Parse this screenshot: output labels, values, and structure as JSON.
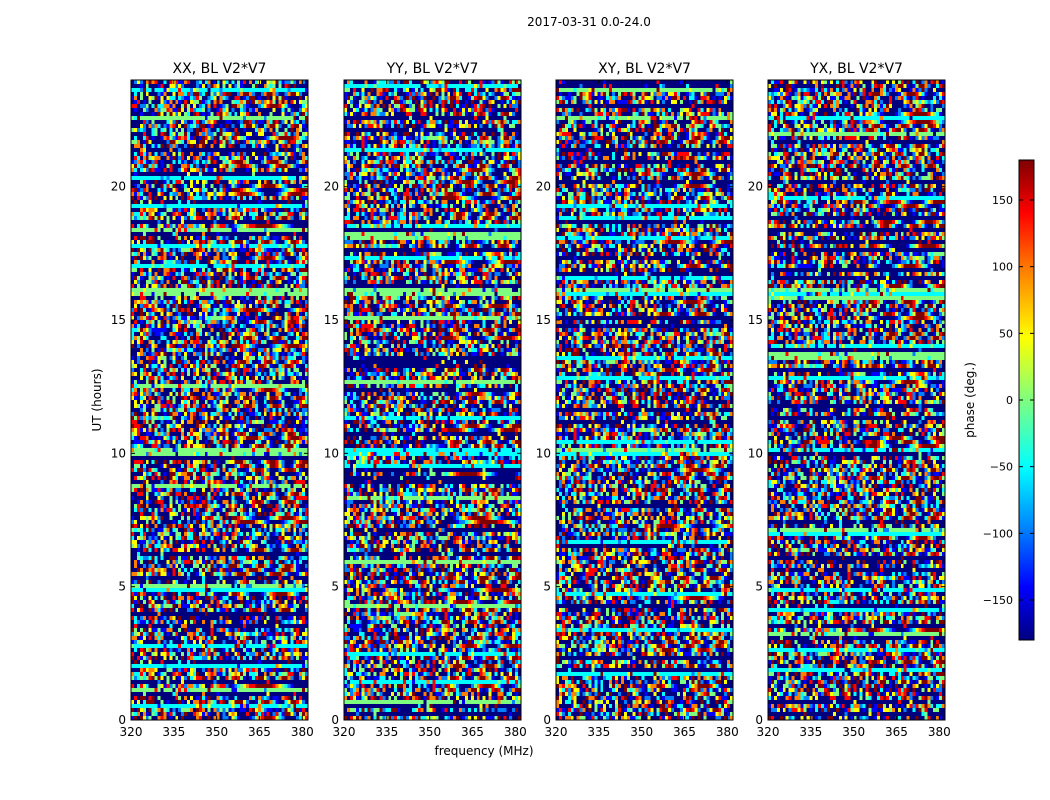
{
  "figure": {
    "suptitle": "2017-03-31 0.0-24.0",
    "xlabel": "frequency (MHz)",
    "ylabel": "UT (hours)"
  },
  "colors": {
    "jet": [
      "#00007f",
      "#0000ff",
      "#007fff",
      "#00ffff",
      "#7fff7f",
      "#ffff00",
      "#ff7f00",
      "#ff0000",
      "#7f0000"
    ],
    "flagged": "#00007f",
    "axis": "#000000"
  },
  "chart_data": [
    {
      "type": "heatmap",
      "title": "XX, BL V2*V7",
      "xlim": [
        320,
        382
      ],
      "ylim": [
        0,
        24
      ],
      "xticks": [
        "320",
        "335",
        "350",
        "365",
        "380"
      ],
      "xtick_values": [
        320,
        335,
        350,
        365,
        380
      ],
      "yticks": [
        "0",
        "5",
        "10",
        "15",
        "20"
      ],
      "ytick_values": [
        0,
        5,
        10,
        15,
        20
      ],
      "value_range": [
        -180,
        180
      ]
    },
    {
      "type": "heatmap",
      "title": "YY, BL V2*V7",
      "xlim": [
        320,
        382
      ],
      "ylim": [
        0,
        24
      ],
      "xticks": [
        "320",
        "335",
        "350",
        "365",
        "380"
      ],
      "xtick_values": [
        320,
        335,
        350,
        365,
        380
      ],
      "yticks": [
        "0",
        "5",
        "10",
        "15",
        "20"
      ],
      "ytick_values": [
        0,
        5,
        10,
        15,
        20
      ],
      "value_range": [
        -180,
        180
      ]
    },
    {
      "type": "heatmap",
      "title": "XY, BL V2*V7",
      "xlim": [
        320,
        382
      ],
      "ylim": [
        0,
        24
      ],
      "xticks": [
        "320",
        "335",
        "350",
        "365",
        "380"
      ],
      "xtick_values": [
        320,
        335,
        350,
        365,
        380
      ],
      "yticks": [
        "0",
        "5",
        "10",
        "15",
        "20"
      ],
      "ytick_values": [
        0,
        5,
        10,
        15,
        20
      ],
      "value_range": [
        -180,
        180
      ]
    },
    {
      "type": "heatmap",
      "title": "YX, BL V2*V7",
      "xlim": [
        320,
        382
      ],
      "ylim": [
        0,
        24
      ],
      "xticks": [
        "320",
        "335",
        "350",
        "365",
        "380"
      ],
      "xtick_values": [
        320,
        335,
        350,
        365,
        380
      ],
      "yticks": [
        "0",
        "5",
        "10",
        "15",
        "20"
      ],
      "ytick_values": [
        0,
        5,
        10,
        15,
        20
      ],
      "value_range": [
        -180,
        180
      ]
    }
  ],
  "colorbar": {
    "label": "phase (deg.)",
    "range": [
      -180,
      180
    ],
    "ticks": [
      "150",
      "100",
      "50",
      "0",
      "−50",
      "−100",
      "−150"
    ],
    "tick_values": [
      150,
      100,
      50,
      0,
      -50,
      -100,
      -150
    ]
  }
}
